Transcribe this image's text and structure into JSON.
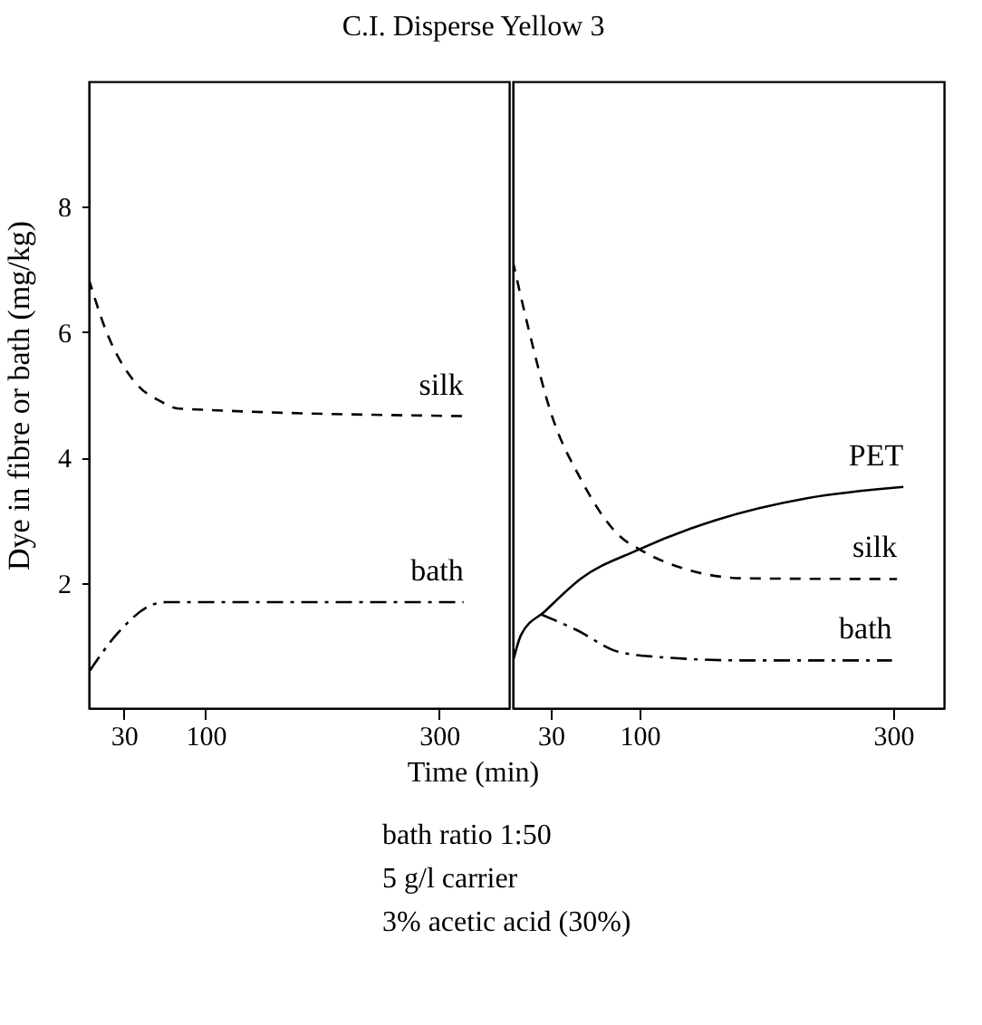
{
  "chart_data": [
    {
      "type": "line",
      "title": "C.I. Disperse Yellow 3",
      "ylabel": "Dye in fibre or bath (mg/kg)",
      "xlabel": "Time (min)",
      "legend": false,
      "grid": false,
      "xlim": [
        0,
        360
      ],
      "xticks": [
        30,
        100,
        300
      ],
      "ylim": [
        0,
        10
      ],
      "yticks": [
        2,
        4,
        6,
        8
      ],
      "series": [
        {
          "name": "silk",
          "color": "#000000",
          "line_style": "dashed",
          "x": [
            0,
            14,
            40,
            61,
            77,
            321
          ],
          "values": [
            6.85,
            6.06,
            5.19,
            4.9,
            4.78,
            4.66
          ]
        },
        {
          "name": "bath",
          "color": "#000000",
          "line_style": "dashdot",
          "x": [
            1,
            25,
            56,
            66,
            321
          ],
          "values": [
            0.6,
            1.2,
            1.66,
            1.69,
            1.69
          ]
        }
      ],
      "annotations": [
        "bath ratio 1:50",
        "5 g/l carrier",
        "3% acetic acid (30%)"
      ]
    },
    {
      "type": "line",
      "legend": false,
      "grid": false,
      "tick_labels": "x",
      "xlim": [
        0,
        340
      ],
      "xticks": [
        30,
        100,
        300
      ],
      "ylim": [
        0,
        10
      ],
      "yticks": [
        2,
        4,
        6,
        8
      ],
      "series": [
        {
          "name": "PET",
          "color": "#000000",
          "line_style": "solid",
          "x": [
            0,
            6.6,
            25.7,
            54,
            97,
            160,
            232,
            308
          ],
          "values": [
            0.73,
            1.17,
            1.55,
            2.07,
            2.51,
            3.0,
            3.35,
            3.53
          ]
        },
        {
          "name": "silk",
          "color": "#000000",
          "line_style": "dashed",
          "x": [
            0,
            11.3,
            30.5,
            54,
            83,
            102,
            136,
            184,
            303
          ],
          "values": [
            7.14,
            6.15,
            4.69,
            3.64,
            2.77,
            2.51,
            2.22,
            2.07,
            2.06
          ]
        },
        {
          "name": "bath",
          "color": "#000000",
          "line_style": "dashdot",
          "x": [
            23,
            50,
            83,
            112,
            184,
            299
          ],
          "values": [
            1.49,
            1.25,
            0.9,
            0.82,
            0.76,
            0.76
          ]
        }
      ]
    }
  ]
}
